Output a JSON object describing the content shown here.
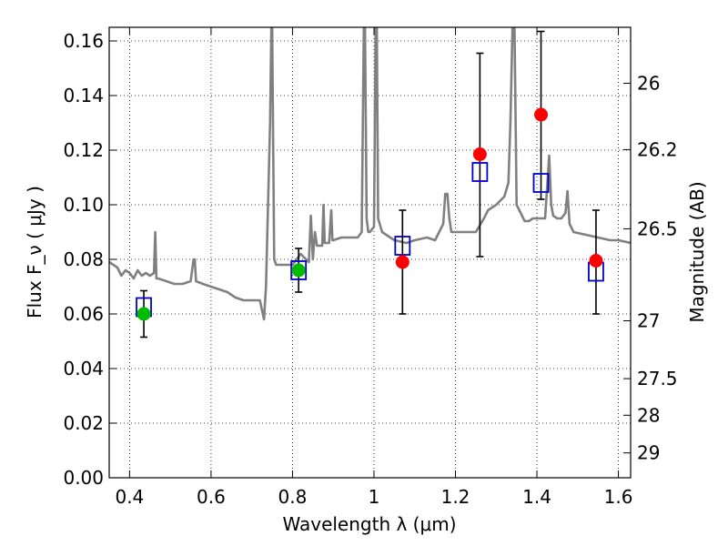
{
  "chart_data": {
    "type": "scatter",
    "xlabel": "Wavelength  λ (μm)",
    "ylabel": "Flux  F_ν  ( μJy )",
    "y2label": "Magnitude (AB)",
    "xlim": [
      0.35,
      1.63
    ],
    "ylim": [
      0.0,
      0.165
    ],
    "xticks": [
      0.4,
      0.6,
      0.8,
      1.0,
      1.2,
      1.4,
      1.6
    ],
    "xtick_labels": [
      "0.4",
      "0.6",
      "0.8",
      "1",
      "1.2",
      "1.4",
      "1.6"
    ],
    "yticks": [
      0.0,
      0.02,
      0.04,
      0.06,
      0.08,
      0.1,
      0.12,
      0.14,
      0.16
    ],
    "ytick_labels": [
      "0.00",
      "0.02",
      "0.04",
      "0.06",
      "0.08",
      "0.10",
      "0.12",
      "0.14",
      "0.16"
    ],
    "y2ticks": [
      {
        "label": "26",
        "flux": 0.1445
      },
      {
        "label": "26.2",
        "flux": 0.1202
      },
      {
        "label": "26.5",
        "flux": 0.0912
      },
      {
        "label": "27",
        "flux": 0.0575
      },
      {
        "label": "27.5",
        "flux": 0.0363
      },
      {
        "label": "28",
        "flux": 0.0229
      },
      {
        "label": "29",
        "flux": 0.0091
      }
    ],
    "grid": true,
    "colors": {
      "model": "#808080",
      "red": "#ff0000",
      "green": "#00bb00",
      "box": "#0000cc",
      "error": "#000000"
    },
    "series": [
      {
        "marker": "circle-green",
        "x": [
          0.435,
          0.815
        ],
        "y": [
          0.06,
          0.076
        ],
        "yerr_low": [
          0.0515,
          0.068
        ],
        "yerr_high": [
          0.0685,
          0.084
        ]
      },
      {
        "marker": "circle-red",
        "x": [
          1.07,
          1.26,
          1.41,
          1.545
        ],
        "y": [
          0.079,
          0.1185,
          0.133,
          0.0795
        ],
        "yerr_low": [
          0.06,
          0.081,
          0.102,
          0.06
        ],
        "yerr_high": [
          0.098,
          0.1555,
          0.1635,
          0.098
        ]
      },
      {
        "marker": "square-blue",
        "x": [
          0.435,
          0.815,
          1.07,
          1.26,
          1.41,
          1.545
        ],
        "y": [
          0.0625,
          0.076,
          0.085,
          0.112,
          0.108,
          0.0755
        ]
      }
    ],
    "model_spectrum": {
      "x": [
        0.35,
        0.37,
        0.38,
        0.39,
        0.4,
        0.41,
        0.42,
        0.43,
        0.44,
        0.45,
        0.46,
        0.463,
        0.466,
        0.47,
        0.49,
        0.51,
        0.53,
        0.55,
        0.557,
        0.56,
        0.563,
        0.58,
        0.6,
        0.62,
        0.64,
        0.66,
        0.68,
        0.7,
        0.72,
        0.73,
        0.735,
        0.745,
        0.748,
        0.75,
        0.752,
        0.755,
        0.76,
        0.78,
        0.8,
        0.82,
        0.84,
        0.845,
        0.85,
        0.855,
        0.86,
        0.873,
        0.876,
        0.879,
        0.89,
        0.895,
        0.898,
        0.9,
        0.92,
        0.94,
        0.96,
        0.97,
        0.975,
        0.978,
        0.982,
        0.986,
        0.99,
        1.0,
        1.004,
        1.007,
        1.01,
        1.02,
        1.05,
        1.08,
        1.1,
        1.13,
        1.15,
        1.17,
        1.175,
        1.18,
        1.185,
        1.19,
        1.22,
        1.25,
        1.27,
        1.28,
        1.3,
        1.32,
        1.33,
        1.335,
        1.34,
        1.345,
        1.35,
        1.37,
        1.38,
        1.39,
        1.4,
        1.42,
        1.43,
        1.435,
        1.44,
        1.45,
        1.46,
        1.47,
        1.475,
        1.48,
        1.49,
        1.52,
        1.55,
        1.58,
        1.6,
        1.63
      ],
      "y": [
        0.079,
        0.077,
        0.074,
        0.076,
        0.075,
        0.073,
        0.076,
        0.074,
        0.075,
        0.074,
        0.075,
        0.09,
        0.073,
        0.073,
        0.072,
        0.071,
        0.071,
        0.072,
        0.08,
        0.08,
        0.072,
        0.071,
        0.07,
        0.069,
        0.068,
        0.066,
        0.065,
        0.065,
        0.065,
        0.058,
        0.07,
        0.13,
        0.165,
        0.165,
        0.13,
        0.08,
        0.078,
        0.078,
        0.078,
        0.082,
        0.079,
        0.096,
        0.08,
        0.09,
        0.085,
        0.085,
        0.1,
        0.086,
        0.086,
        0.098,
        0.087,
        0.087,
        0.088,
        0.088,
        0.088,
        0.09,
        0.165,
        0.165,
        0.095,
        0.09,
        0.09,
        0.092,
        0.165,
        0.165,
        0.095,
        0.09,
        0.087,
        0.086,
        0.087,
        0.088,
        0.087,
        0.093,
        0.104,
        0.104,
        0.095,
        0.09,
        0.09,
        0.09,
        0.095,
        0.098,
        0.1,
        0.103,
        0.108,
        0.13,
        0.165,
        0.165,
        0.1,
        0.094,
        0.094,
        0.095,
        0.095,
        0.095,
        0.118,
        0.1,
        0.096,
        0.095,
        0.095,
        0.097,
        0.105,
        0.093,
        0.09,
        0.089,
        0.088,
        0.087,
        0.087,
        0.086
      ]
    }
  }
}
